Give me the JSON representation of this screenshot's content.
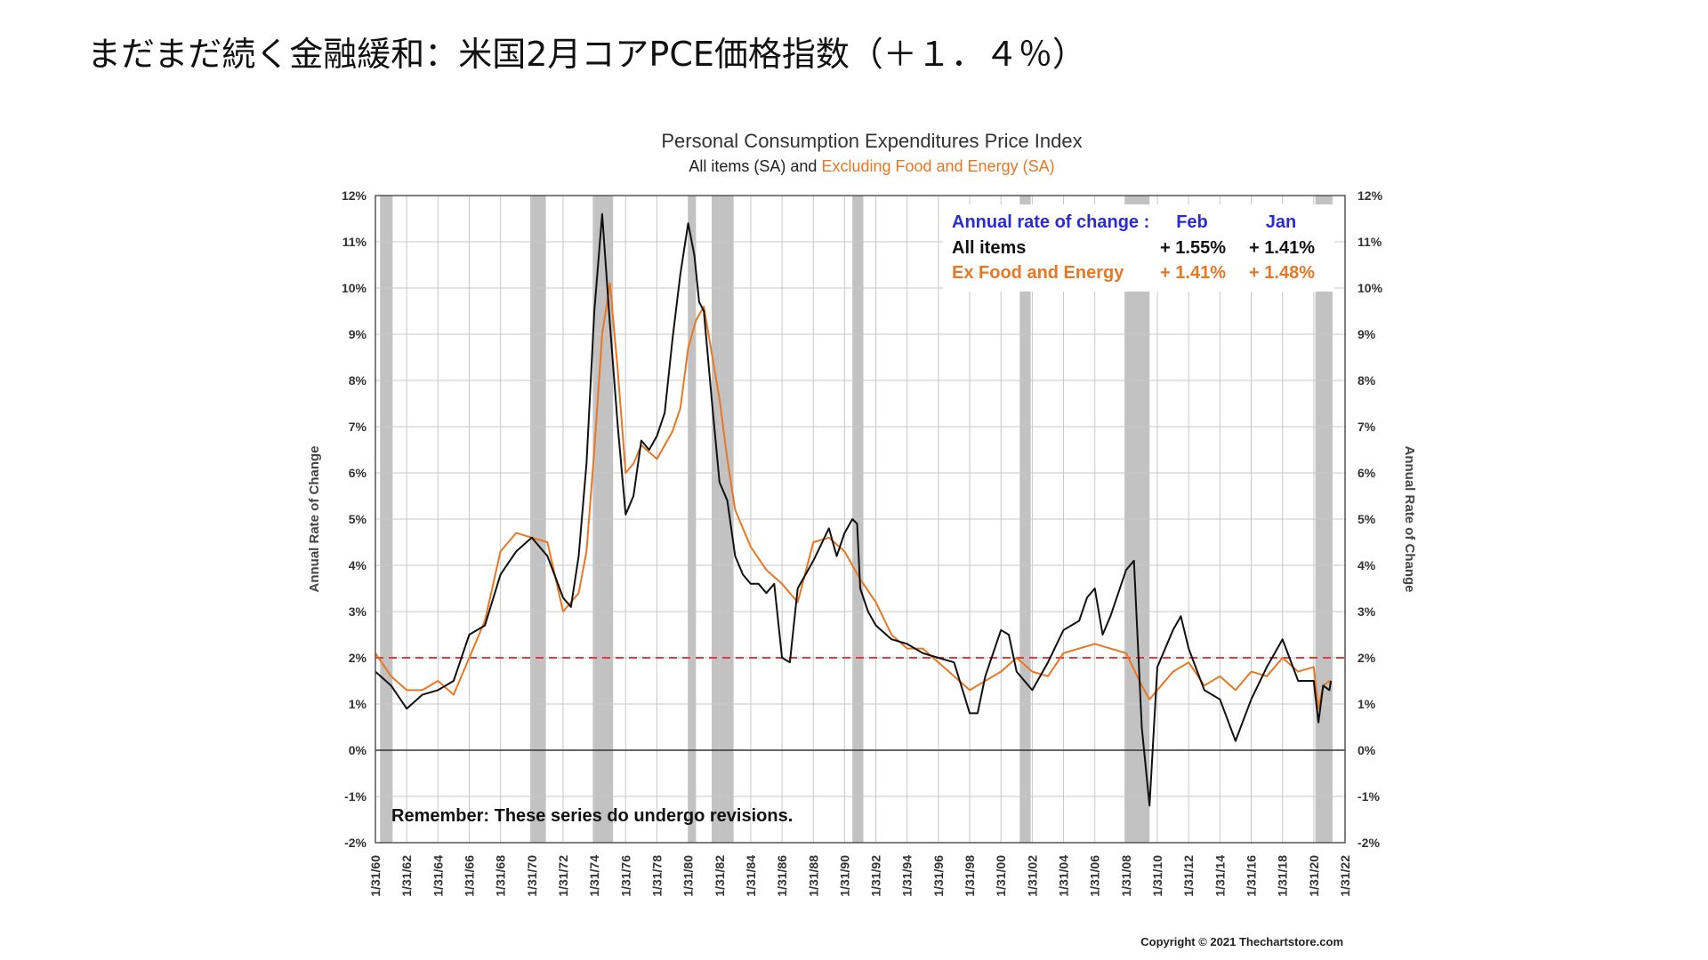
{
  "page": {
    "heading": "まだまだ続く金融緩和：米国2月コアPCE価格指数（＋１．４％）"
  },
  "chart_data": {
    "type": "line",
    "title": "Personal Consumption Expenditures Price Index",
    "subtitle_part1": "All items (SA) and ",
    "subtitle_part2": "Excluding Food and Energy (SA)",
    "ylabel_left": "Annual Rate of Change",
    "ylabel_right": "Annual Rate of Change",
    "ylim": [
      -2,
      12
    ],
    "yticks": [
      "12%",
      "11%",
      "10%",
      "9%",
      "8%",
      "7%",
      "6%",
      "5%",
      "4%",
      "3%",
      "2%",
      "1%",
      "0%",
      "-1%",
      "-2%"
    ],
    "xlim": [
      1960,
      2022
    ],
    "xticks": [
      "1/31/60",
      "1/31/62",
      "1/31/64",
      "1/31/66",
      "1/31/68",
      "1/31/70",
      "1/31/72",
      "1/31/74",
      "1/31/76",
      "1/31/78",
      "1/31/80",
      "1/31/82",
      "1/31/84",
      "1/31/86",
      "1/31/88",
      "1/31/90",
      "1/31/92",
      "1/31/94",
      "1/31/96",
      "1/31/98",
      "1/31/00",
      "1/31/02",
      "1/31/04",
      "1/31/06",
      "1/31/08",
      "1/31/10",
      "1/31/12",
      "1/31/14",
      "1/31/16",
      "1/31/18",
      "1/31/20",
      "1/31/22"
    ],
    "grid": true,
    "reference_line": {
      "value": 2,
      "color": "#e23b3b",
      "style": "dashed"
    },
    "recessions": [
      [
        1960.3,
        1961.1
      ],
      [
        1969.9,
        1970.9
      ],
      [
        1973.9,
        1975.2
      ],
      [
        1980.0,
        1980.5
      ],
      [
        1981.5,
        1982.9
      ],
      [
        1990.5,
        1991.2
      ],
      [
        2001.2,
        2001.9
      ],
      [
        2007.9,
        2009.5
      ],
      [
        2020.1,
        2021.2
      ]
    ],
    "series": [
      {
        "name": "All items (SA)",
        "color": "#111111",
        "x": [
          1960.0,
          1961.0,
          1962.0,
          1963.0,
          1964.0,
          1965.0,
          1966.0,
          1967.0,
          1968.0,
          1969.0,
          1970.0,
          1971.0,
          1972.0,
          1972.5,
          1973.0,
          1973.5,
          1974.0,
          1974.5,
          1975.0,
          1975.5,
          1976.0,
          1976.5,
          1977.0,
          1977.5,
          1978.0,
          1978.5,
          1979.0,
          1979.5,
          1980.0,
          1980.4,
          1980.7,
          1981.0,
          1981.5,
          1982.0,
          1982.5,
          1983.0,
          1983.5,
          1984.0,
          1984.5,
          1985.0,
          1985.5,
          1986.0,
          1986.5,
          1987.0,
          1988.0,
          1989.0,
          1989.5,
          1990.0,
          1990.5,
          1990.8,
          1991.0,
          1991.5,
          1992.0,
          1993.0,
          1994.0,
          1995.0,
          1996.0,
          1997.0,
          1998.0,
          1998.5,
          1999.0,
          2000.0,
          2000.5,
          2001.0,
          2001.5,
          2002.0,
          2003.0,
          2004.0,
          2005.0,
          2005.5,
          2006.0,
          2006.5,
          2007.0,
          2007.5,
          2008.0,
          2008.5,
          2009.0,
          2009.5,
          2010.0,
          2011.0,
          2011.5,
          2012.0,
          2013.0,
          2014.0,
          2015.0,
          2016.0,
          2017.0,
          2018.0,
          2019.0,
          2020.0,
          2020.3,
          2020.6,
          2021.0,
          2021.1
        ],
        "values": [
          1.7,
          1.4,
          0.9,
          1.2,
          1.3,
          1.5,
          2.5,
          2.7,
          3.8,
          4.3,
          4.6,
          4.2,
          3.3,
          3.1,
          4.2,
          6.2,
          9.5,
          11.6,
          9.2,
          7.0,
          5.1,
          5.5,
          6.7,
          6.5,
          6.8,
          7.3,
          8.9,
          10.3,
          11.4,
          10.7,
          9.7,
          9.5,
          7.6,
          5.8,
          5.4,
          4.2,
          3.8,
          3.6,
          3.6,
          3.4,
          3.6,
          2.0,
          1.9,
          3.5,
          4.1,
          4.8,
          4.2,
          4.7,
          5.0,
          4.9,
          3.5,
          3.0,
          2.7,
          2.4,
          2.3,
          2.1,
          2.0,
          1.9,
          0.8,
          0.8,
          1.6,
          2.6,
          2.5,
          1.7,
          1.5,
          1.3,
          1.9,
          2.6,
          2.8,
          3.3,
          3.5,
          2.5,
          2.9,
          3.4,
          3.9,
          4.1,
          0.5,
          -1.2,
          1.8,
          2.6,
          2.9,
          2.2,
          1.3,
          1.1,
          0.2,
          1.1,
          1.8,
          2.4,
          1.5,
          1.5,
          0.6,
          1.4,
          1.3,
          1.5
        ]
      },
      {
        "name": "Excluding Food and Energy (SA)",
        "color": "#e87722",
        "x": [
          1960.0,
          1961.0,
          1962.0,
          1963.0,
          1964.0,
          1965.0,
          1966.0,
          1967.0,
          1968.0,
          1969.0,
          1970.0,
          1971.0,
          1972.0,
          1973.0,
          1973.5,
          1974.0,
          1974.5,
          1975.0,
          1975.5,
          1976.0,
          1976.5,
          1977.0,
          1978.0,
          1979.0,
          1979.5,
          1980.0,
          1980.5,
          1981.0,
          1981.5,
          1982.0,
          1982.5,
          1983.0,
          1984.0,
          1985.0,
          1986.0,
          1987.0,
          1988.0,
          1989.0,
          1990.0,
          1991.0,
          1992.0,
          1993.0,
          1994.0,
          1995.0,
          1996.0,
          1997.0,
          1998.0,
          1999.0,
          2000.0,
          2001.0,
          2002.0,
          2003.0,
          2004.0,
          2005.0,
          2006.0,
          2007.0,
          2008.0,
          2009.0,
          2009.5,
          2010.0,
          2011.0,
          2012.0,
          2013.0,
          2014.0,
          2015.0,
          2016.0,
          2017.0,
          2018.0,
          2019.0,
          2020.0,
          2020.3,
          2020.6,
          2021.0,
          2021.1
        ],
        "values": [
          2.1,
          1.6,
          1.3,
          1.3,
          1.5,
          1.2,
          2.0,
          2.8,
          4.3,
          4.7,
          4.6,
          4.5,
          3.0,
          3.4,
          4.3,
          6.5,
          9.0,
          10.1,
          8.2,
          6.0,
          6.2,
          6.6,
          6.3,
          6.9,
          7.4,
          8.7,
          9.3,
          9.6,
          8.6,
          7.6,
          6.3,
          5.2,
          4.4,
          3.9,
          3.6,
          3.2,
          4.5,
          4.6,
          4.3,
          3.7,
          3.2,
          2.5,
          2.2,
          2.2,
          1.9,
          1.6,
          1.3,
          1.5,
          1.7,
          2.0,
          1.7,
          1.6,
          2.1,
          2.2,
          2.3,
          2.2,
          2.1,
          1.4,
          1.1,
          1.3,
          1.7,
          1.9,
          1.4,
          1.6,
          1.3,
          1.7,
          1.6,
          2.0,
          1.7,
          1.8,
          0.9,
          1.4,
          1.5,
          1.4
        ]
      }
    ],
    "info_box": {
      "heading": "Annual rate of change :",
      "col1": "Feb",
      "col2": "Jan",
      "rows": [
        {
          "label": "All items",
          "feb": "+ 1.55%",
          "jan": "+ 1.41%",
          "color": "#111111"
        },
        {
          "label": "Ex Food and Energy",
          "feb": "+ 1.41%",
          "jan": "+ 1.48%",
          "color": "#e87722"
        }
      ],
      "heading_color": "#2a2ad6"
    },
    "note": "Remember:  These series do undergo revisions.",
    "copyright": "Copyright © 2021 Thechartstore.com",
    "colors": {
      "recession": "#c2c2c2",
      "grid": "#c8c8c8",
      "axis": "#555555",
      "zero_line": "#333333",
      "subtitle_orange": "#e87722",
      "subtitle_dark": "#222222"
    }
  }
}
